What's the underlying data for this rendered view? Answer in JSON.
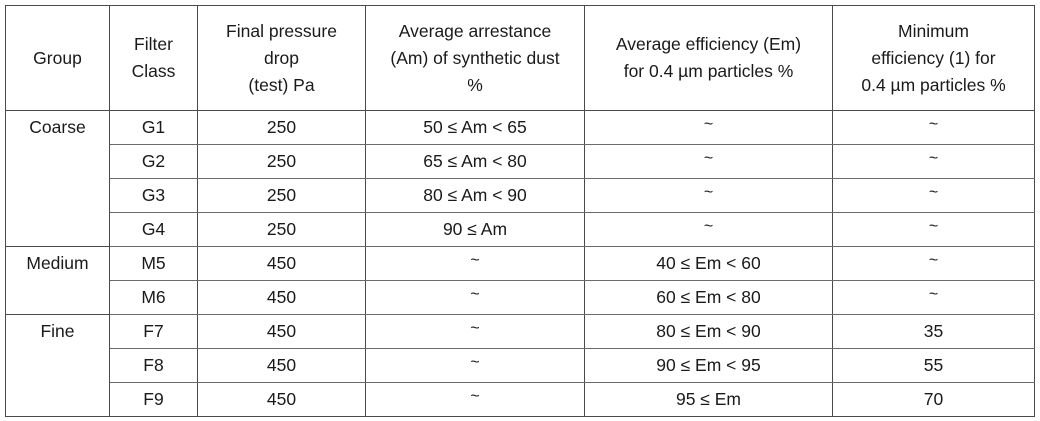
{
  "table": {
    "headers": {
      "group": "Group",
      "filter_class": [
        "Filter",
        "Class"
      ],
      "final_pressure": [
        "Final pressure",
        "drop",
        "(test) Pa"
      ],
      "avg_arrestance": [
        "Average arrestance",
        "(Am) of synthetic dust",
        "%"
      ],
      "avg_efficiency": [
        "Average efficiency (Em)",
        "for 0.4 µm particles %"
      ],
      "min_efficiency": [
        "Minimum",
        "efficiency (1) for",
        "0.4 µm particles %"
      ]
    },
    "rows": [
      {
        "group": "Coarse",
        "class": "G1",
        "pressure": "250",
        "arrestance": "50 ≤ Am < 65",
        "avg_eff": "~",
        "min_eff": "~"
      },
      {
        "group": "",
        "class": "G2",
        "pressure": "250",
        "arrestance": "65 ≤ Am < 80",
        "avg_eff": "~",
        "min_eff": "~"
      },
      {
        "group": "",
        "class": "G3",
        "pressure": "250",
        "arrestance": "80 ≤ Am < 90",
        "avg_eff": "~",
        "min_eff": "~"
      },
      {
        "group": "",
        "class": "G4",
        "pressure": "250",
        "arrestance": "90 ≤ Am",
        "avg_eff": "~",
        "min_eff": "~"
      },
      {
        "group": "Medium",
        "class": "M5",
        "pressure": "450",
        "arrestance": "~",
        "avg_eff": "40 ≤ Em < 60",
        "min_eff": "~"
      },
      {
        "group": "",
        "class": "M6",
        "pressure": "450",
        "arrestance": "~",
        "avg_eff": "60 ≤ Em < 80",
        "min_eff": "~"
      },
      {
        "group": "Fine",
        "class": "F7",
        "pressure": "450",
        "arrestance": "~",
        "avg_eff": "80 ≤ Em < 90",
        "min_eff": "35"
      },
      {
        "group": "",
        "class": "F8",
        "pressure": "450",
        "arrestance": "~",
        "avg_eff": "90 ≤ Em < 95",
        "min_eff": "55"
      },
      {
        "group": "",
        "class": "F9",
        "pressure": "450",
        "arrestance": "~",
        "avg_eff": "95 ≤ Em",
        "min_eff": "70"
      }
    ]
  }
}
